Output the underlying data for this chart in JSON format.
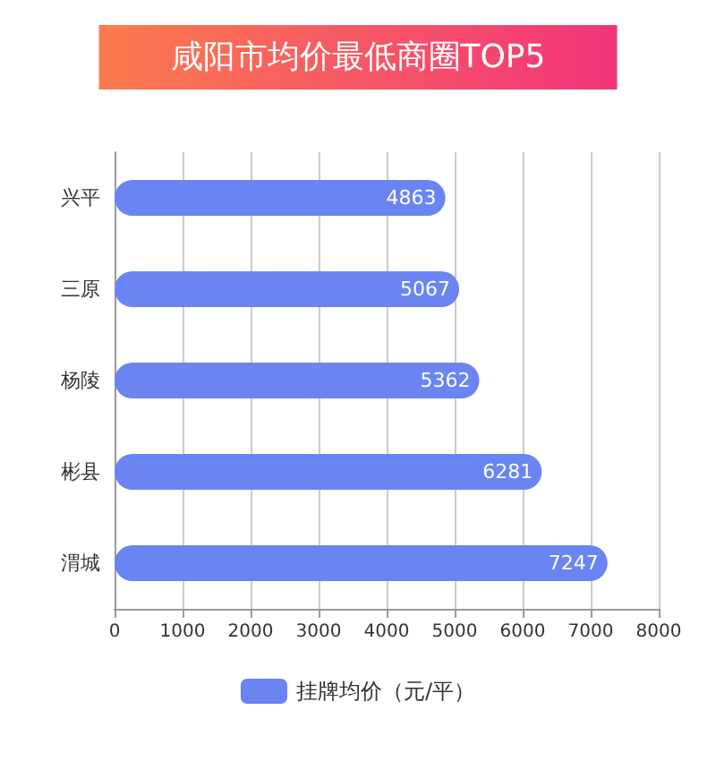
{
  "chart_data": {
    "type": "bar",
    "orientation": "horizontal",
    "title": "咸阳市均价最低商圈TOP5",
    "categories": [
      "兴平",
      "三原",
      "杨陵",
      "彬县",
      "渭城"
    ],
    "series": [
      {
        "name": "挂牌均价（元/平）",
        "color": "#6a84f2",
        "values": [
          4863,
          5067,
          5362,
          6281,
          7247
        ]
      }
    ],
    "xlim": [
      0,
      8000
    ],
    "xticks": [
      0,
      1000,
      2000,
      3000,
      4000,
      5000,
      6000,
      7000,
      8000
    ],
    "grid": "x",
    "legend": "bottom",
    "data_labels": true
  }
}
